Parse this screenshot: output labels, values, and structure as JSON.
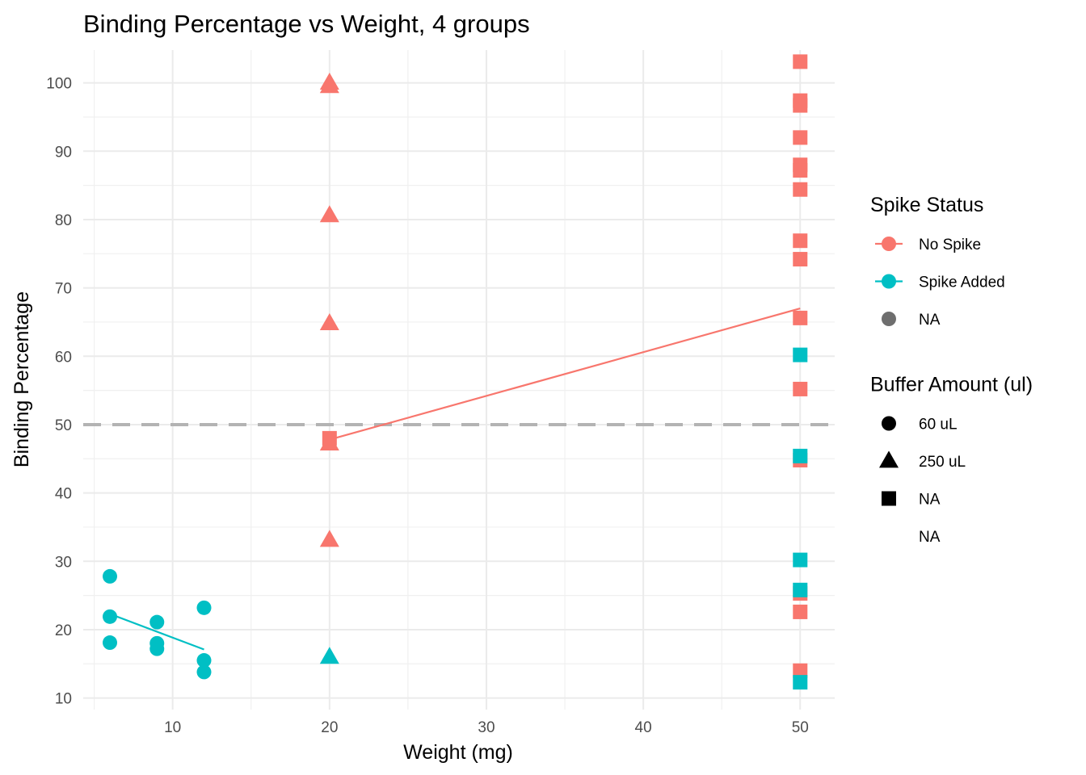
{
  "chart_data": {
    "type": "scatter",
    "title": "Binding Percentage vs Weight, 4 groups",
    "xlabel": "Weight (mg)",
    "ylabel": "Binding Percentage",
    "xlim": [
      4.3,
      52.2
    ],
    "ylim": [
      8.3,
      104.8
    ],
    "xticks": [
      10,
      20,
      30,
      40,
      50
    ],
    "yticks": [
      10,
      20,
      30,
      40,
      50,
      60,
      70,
      80,
      90,
      100
    ],
    "grid": true,
    "reference_line": {
      "orientation": "horizontal",
      "y": 50,
      "style": "dashed",
      "color": "#b3b3b3"
    },
    "colors": {
      "No Spike": "#f8766d",
      "Spike Added": "#00bfc4",
      "NA": "#6e6e6e"
    },
    "points": [
      {
        "x": 6,
        "y": 27.8,
        "spike": "Spike Added",
        "buffer": "60 uL"
      },
      {
        "x": 6,
        "y": 21.9,
        "spike": "Spike Added",
        "buffer": "60 uL"
      },
      {
        "x": 6,
        "y": 18.1,
        "spike": "Spike Added",
        "buffer": "60 uL"
      },
      {
        "x": 9,
        "y": 21.1,
        "spike": "Spike Added",
        "buffer": "60 uL"
      },
      {
        "x": 9,
        "y": 18.0,
        "spike": "Spike Added",
        "buffer": "60 uL"
      },
      {
        "x": 9,
        "y": 17.2,
        "spike": "Spike Added",
        "buffer": "60 uL"
      },
      {
        "x": 12,
        "y": 23.2,
        "spike": "Spike Added",
        "buffer": "60 uL"
      },
      {
        "x": 12,
        "y": 15.5,
        "spike": "Spike Added",
        "buffer": "60 uL"
      },
      {
        "x": 12,
        "y": 13.8,
        "spike": "Spike Added",
        "buffer": "60 uL"
      },
      {
        "x": 20,
        "y": 99.5,
        "spike": "No Spike",
        "buffer": "250 uL"
      },
      {
        "x": 20,
        "y": 100.0,
        "spike": "No Spike",
        "buffer": "250 uL"
      },
      {
        "x": 20,
        "y": 80.6,
        "spike": "No Spike",
        "buffer": "250 uL"
      },
      {
        "x": 20,
        "y": 64.8,
        "spike": "No Spike",
        "buffer": "250 uL"
      },
      {
        "x": 20,
        "y": 47.2,
        "spike": "No Spike",
        "buffer": "250 uL"
      },
      {
        "x": 20,
        "y": 33.1,
        "spike": "No Spike",
        "buffer": "250 uL"
      },
      {
        "x": 20,
        "y": 16.0,
        "spike": "Spike Added",
        "buffer": "250 uL"
      },
      {
        "x": 20,
        "y": 48.0,
        "spike": "No Spike",
        "buffer": "NA"
      },
      {
        "x": 50,
        "y": 103.1,
        "spike": "No Spike",
        "buffer": "NA"
      },
      {
        "x": 50,
        "y": 97.4,
        "spike": "No Spike",
        "buffer": "NA"
      },
      {
        "x": 50,
        "y": 96.7,
        "spike": "No Spike",
        "buffer": "NA"
      },
      {
        "x": 50,
        "y": 92.0,
        "spike": "No Spike",
        "buffer": "NA"
      },
      {
        "x": 50,
        "y": 88.0,
        "spike": "No Spike",
        "buffer": "NA"
      },
      {
        "x": 50,
        "y": 87.2,
        "spike": "No Spike",
        "buffer": "NA"
      },
      {
        "x": 50,
        "y": 84.4,
        "spike": "No Spike",
        "buffer": "NA"
      },
      {
        "x": 50,
        "y": 76.9,
        "spike": "No Spike",
        "buffer": "NA"
      },
      {
        "x": 50,
        "y": 74.2,
        "spike": "No Spike",
        "buffer": "NA"
      },
      {
        "x": 50,
        "y": 65.6,
        "spike": "No Spike",
        "buffer": "NA"
      },
      {
        "x": 50,
        "y": 55.2,
        "spike": "No Spike",
        "buffer": "NA"
      },
      {
        "x": 50,
        "y": 44.8,
        "spike": "No Spike",
        "buffer": "NA"
      },
      {
        "x": 50,
        "y": 25.3,
        "spike": "No Spike",
        "buffer": "NA"
      },
      {
        "x": 50,
        "y": 22.6,
        "spike": "No Spike",
        "buffer": "NA"
      },
      {
        "x": 50,
        "y": 14.0,
        "spike": "No Spike",
        "buffer": "NA"
      },
      {
        "x": 50,
        "y": 60.2,
        "spike": "Spike Added",
        "buffer": "NA"
      },
      {
        "x": 50,
        "y": 45.4,
        "spike": "Spike Added",
        "buffer": "NA"
      },
      {
        "x": 50,
        "y": 30.2,
        "spike": "Spike Added",
        "buffer": "NA"
      },
      {
        "x": 50,
        "y": 25.8,
        "spike": "Spike Added",
        "buffer": "NA"
      },
      {
        "x": 50,
        "y": 12.3,
        "spike": "Spike Added",
        "buffer": "NA"
      }
    ],
    "trend_lines": [
      {
        "series": "No Spike",
        "x": [
          20,
          50
        ],
        "y": [
          47.8,
          67.0
        ]
      },
      {
        "series": "Spike Added",
        "x": [
          6,
          12
        ],
        "y": [
          22.3,
          17.1
        ]
      }
    ],
    "legends": [
      {
        "title": "Spike Status",
        "entries": [
          {
            "label": "No Spike",
            "color": "#f8766d",
            "line": true
          },
          {
            "label": "Spike Added",
            "color": "#00bfc4",
            "line": true
          },
          {
            "label": "NA",
            "color": "#6e6e6e",
            "line": false
          }
        ]
      },
      {
        "title": "Buffer Amount (ul)",
        "entries": [
          {
            "label": "60 uL",
            "shape": "circle"
          },
          {
            "label": "250 uL",
            "shape": "triangle"
          },
          {
            "label": "NA",
            "shape": "square"
          },
          {
            "label": "NA",
            "shape": "none"
          }
        ]
      }
    ]
  }
}
